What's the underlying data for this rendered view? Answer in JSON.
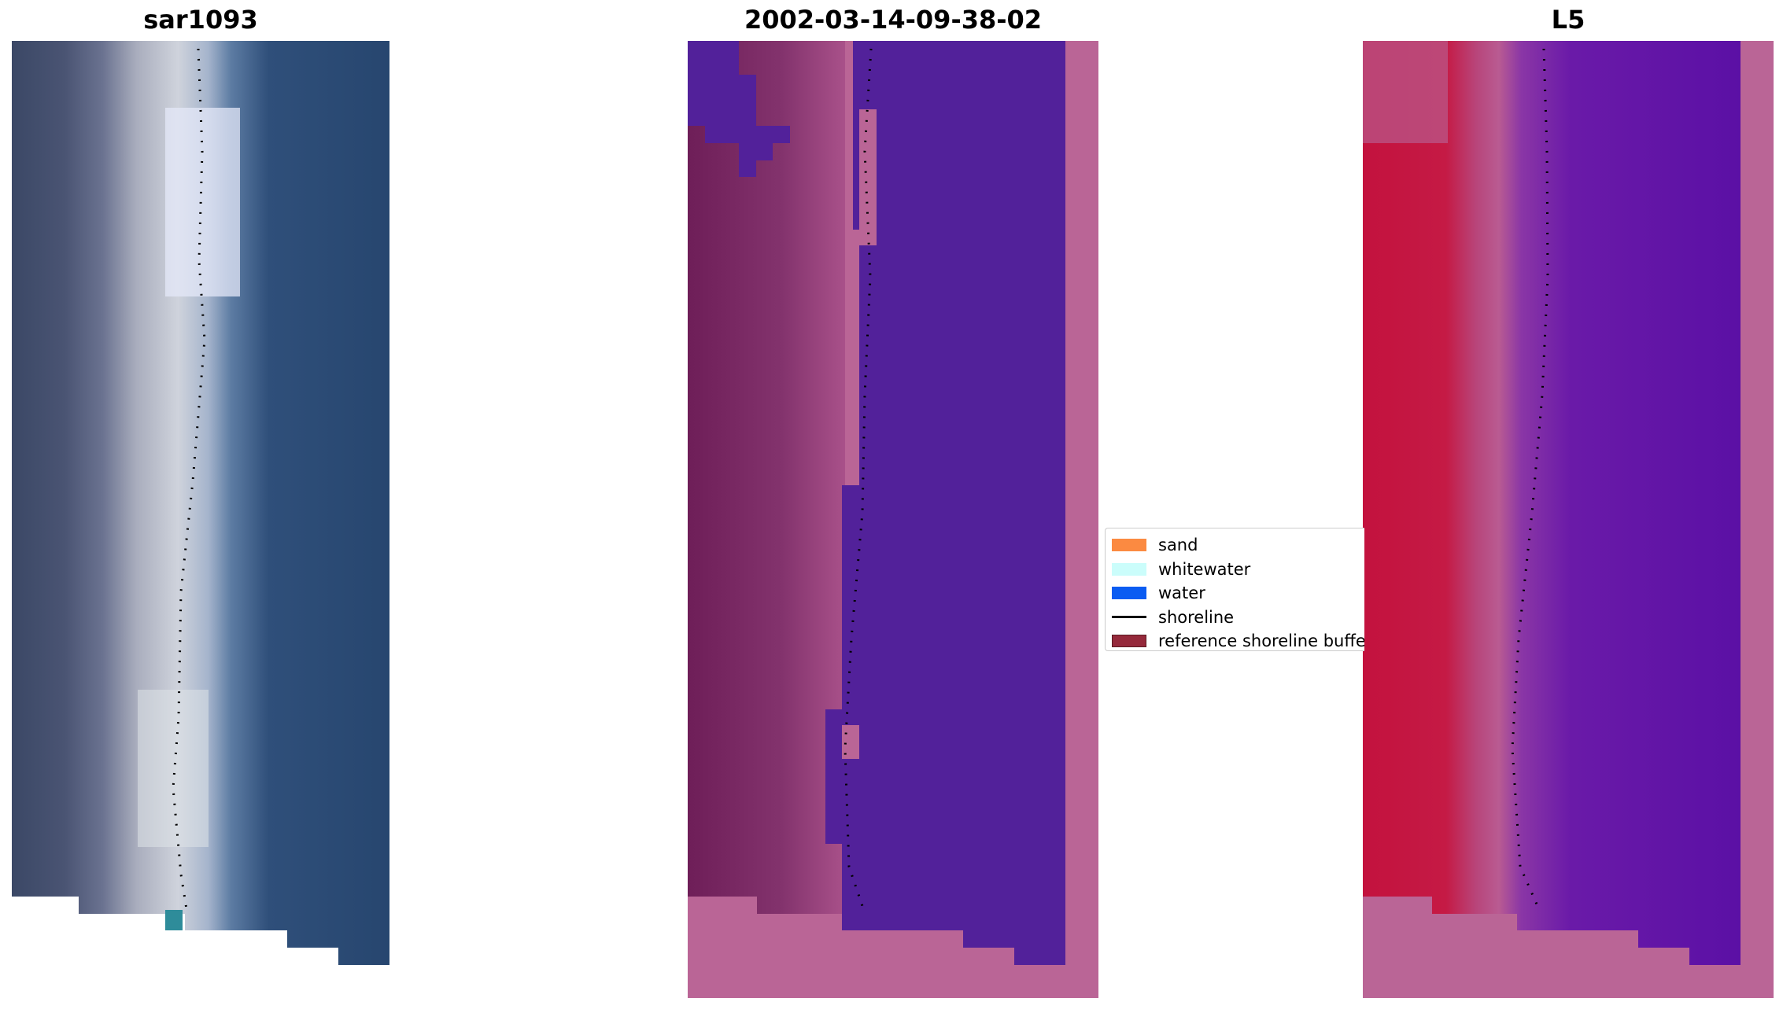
{
  "panels": {
    "left": {
      "title": "sar1093"
    },
    "middle": {
      "title": "2002-03-14-09-38-02"
    },
    "right": {
      "title": "L5"
    }
  },
  "legend": {
    "items": [
      {
        "label": "sand",
        "color": "#fb8a41",
        "kind": "patch"
      },
      {
        "label": "whitewater",
        "color": "#cbfdfb",
        "kind": "patch"
      },
      {
        "label": "water",
        "color": "#0a5cf2",
        "kind": "patch"
      },
      {
        "label": "shoreline",
        "color": "#000000",
        "kind": "line"
      },
      {
        "label": "reference shoreline buffer",
        "color": "#95293b",
        "kind": "patch"
      }
    ]
  },
  "colors": {
    "left_water": "#27466f",
    "left_land": "#4a5473",
    "left_surf": "#c6cad6",
    "mid_water": "#52219a",
    "mid_land": "#6e1e58",
    "mid_pink": "#ba6596",
    "right_red": "#c3123e",
    "right_water": "#6313a6",
    "right_pink": "#ba6596"
  }
}
